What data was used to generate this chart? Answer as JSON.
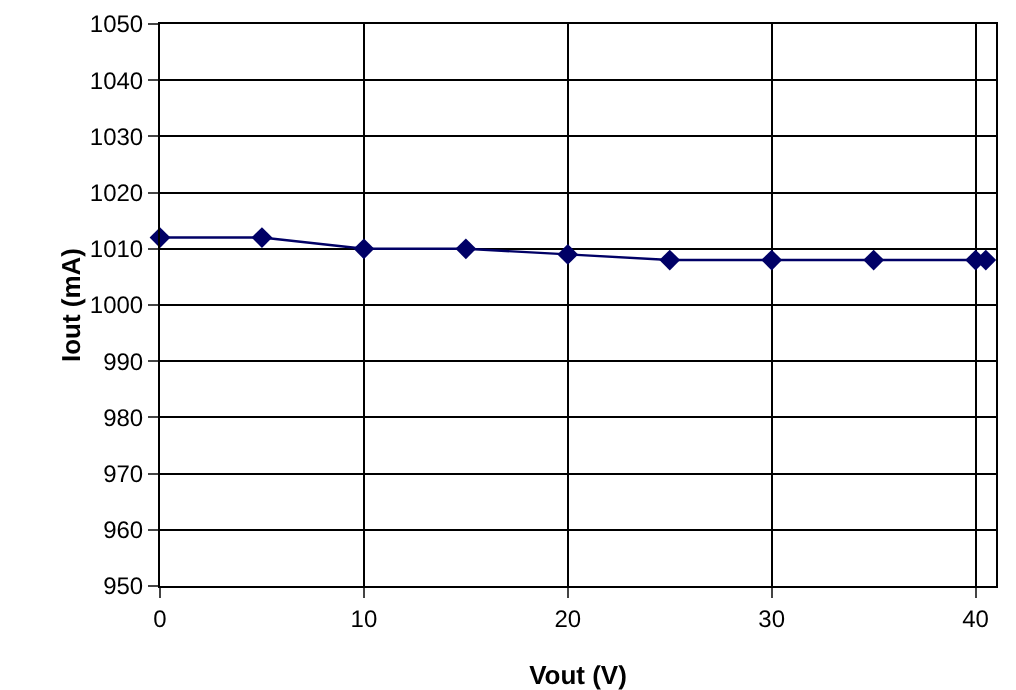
{
  "chart_data": {
    "type": "line",
    "xlabel": "Vout (V)",
    "ylabel": "Iout (mA)",
    "x": [
      0,
      5,
      10,
      15,
      20,
      25,
      30,
      35,
      40,
      40.5
    ],
    "series": [
      {
        "color": "#000066",
        "values": [
          1012,
          1012,
          1010,
          1010,
          1009,
          1008,
          1008,
          1008,
          1008,
          1008
        ]
      }
    ],
    "xlim": [
      0,
      41
    ],
    "xticks": [
      0,
      10,
      20,
      30,
      40
    ],
    "ylim": [
      950,
      1050
    ],
    "yticks": [
      950,
      960,
      970,
      980,
      990,
      1000,
      1010,
      1020,
      1030,
      1040,
      1050
    ],
    "grid": true,
    "marker": "diamond",
    "line_style": "solid",
    "legend": false
  }
}
